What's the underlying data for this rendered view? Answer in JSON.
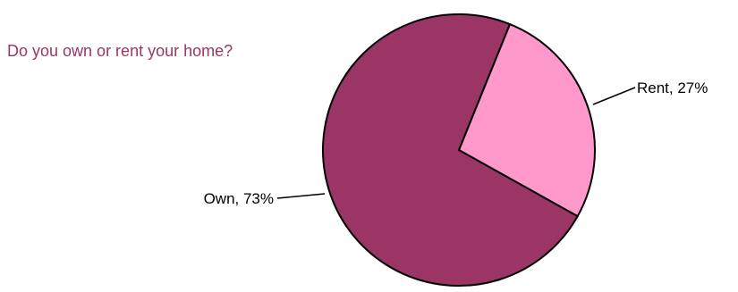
{
  "chart_data": {
    "type": "pie",
    "title": "Do you own or rent your home?",
    "slices": [
      {
        "label": "Own",
        "value": 73,
        "display": "Own, 73%",
        "color": "#9b3566"
      },
      {
        "label": "Rent",
        "value": 27,
        "display": "Rent, 27%",
        "color": "#ff99cc"
      }
    ],
    "legend": "none",
    "grid": false,
    "colors": {
      "title": "#9b3566",
      "outline": "#000000"
    }
  }
}
